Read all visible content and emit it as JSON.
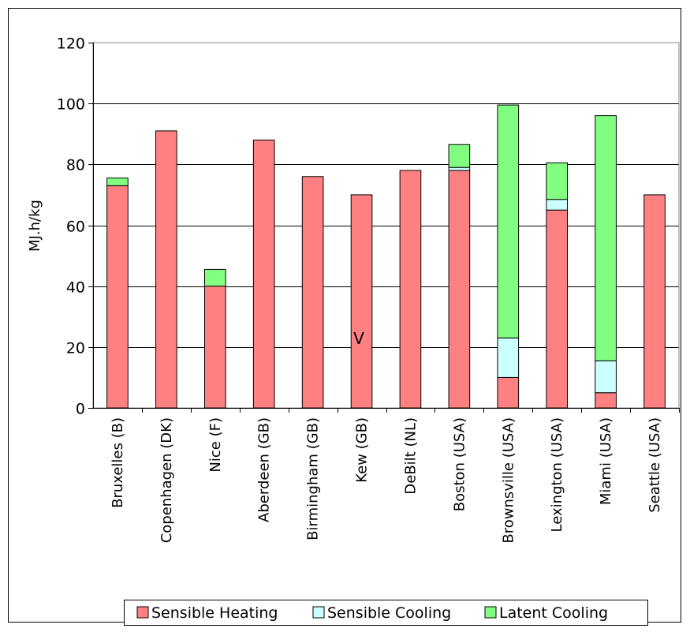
{
  "chart_data": {
    "type": "bar",
    "stacked": true,
    "title": "",
    "xlabel": "",
    "ylabel": "MJ.h/kg",
    "ylim": [
      0,
      120
    ],
    "yticks": [
      0,
      20,
      40,
      60,
      80,
      100,
      120
    ],
    "grid": true,
    "legend_position": "bottom",
    "categories": [
      "Bruxelles (B)",
      "Copenhagen (DK)",
      "Nice (F)",
      "Aberdeen (GB)",
      "Birmingham (GB)",
      "Kew (GB)",
      "DeBilt (NL)",
      "Boston (USA)",
      "Brownsville (USA)",
      "Lexington (USA)",
      "Miami (USA)",
      "Seattle (USA)"
    ],
    "series": [
      {
        "name": "Sensible Heating",
        "color": "#ff8080",
        "values": [
          73,
          91,
          40,
          88,
          76,
          70,
          78,
          78,
          10,
          65,
          5,
          70
        ]
      },
      {
        "name": "Sensible Cooling",
        "color": "#ccffff",
        "values": [
          0,
          0,
          0,
          0,
          0,
          0,
          0,
          1,
          13,
          3.5,
          10.5,
          0
        ]
      },
      {
        "name": "Latent Cooling",
        "color": "#80ff80",
        "values": [
          2.5,
          0,
          5.5,
          0,
          0,
          0,
          0,
          7.5,
          76.5,
          12,
          80.5,
          0
        ]
      }
    ],
    "annotation": "V"
  }
}
